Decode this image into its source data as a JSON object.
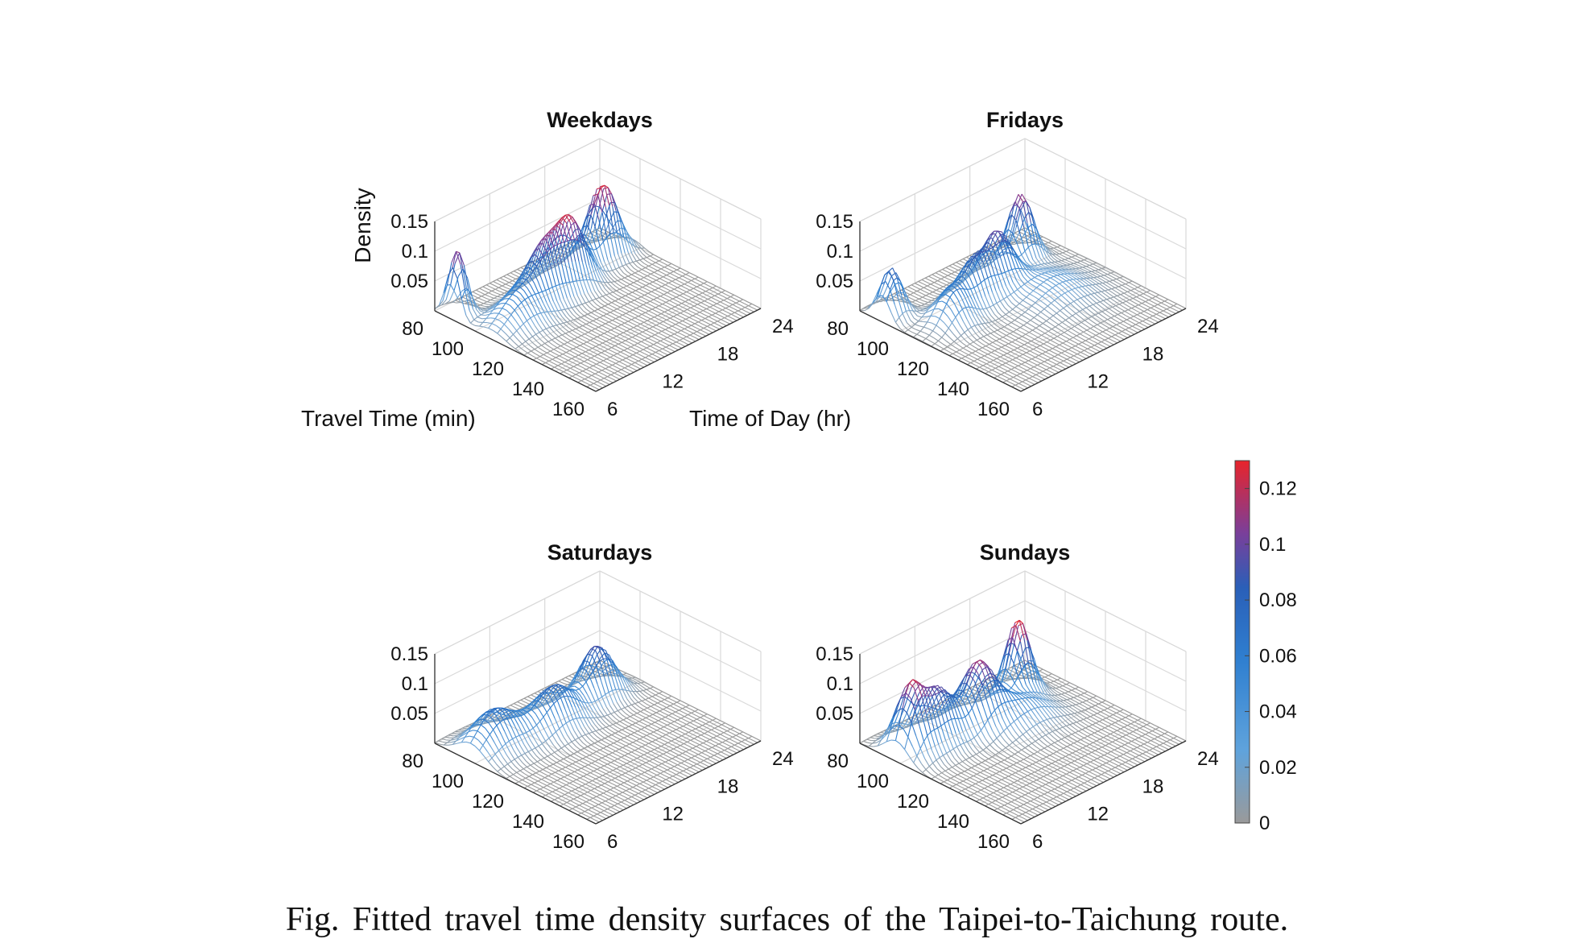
{
  "caption": "Fig. Fitted travel time density surfaces of the Taipei-to-Taichung route.",
  "axis_labels": {
    "x": "Travel Time (min)",
    "y": "Time of Day (hr)",
    "z": "Density"
  },
  "colorbar": {
    "ticks": [
      "0",
      "0.02",
      "0.04",
      "0.06",
      "0.08",
      "0.1",
      "0.12"
    ],
    "range": [
      0,
      0.13
    ],
    "colors": [
      "#9a9a9a",
      "#2f8ad8",
      "#2a5fb8",
      "#9b3f8e",
      "#e8242b"
    ]
  },
  "chart_data": [
    {
      "type": "surface",
      "title": "Weekdays",
      "xlabel": "Travel Time (min)",
      "ylabel": "Time of Day (hr)",
      "zlabel": "Density",
      "xlim": [
        80,
        160
      ],
      "ylim": [
        6,
        24
      ],
      "zlim": [
        0,
        0.15
      ],
      "xticks": [
        "80",
        "100",
        "120",
        "140",
        "160"
      ],
      "yticks": [
        "6",
        "12",
        "18",
        "24"
      ],
      "zticks": [
        "0.05",
        "0.1",
        "0.15"
      ],
      "peaks": [
        {
          "time_of_day": 6.5,
          "travel_time": 89,
          "density": 0.113,
          "time_spread": 0.7,
          "travel_spread": 3.5
        },
        {
          "time_of_day": 9,
          "travel_time": 108,
          "density": 0.05,
          "time_spread": 2.0,
          "travel_spread": 7
        },
        {
          "time_of_day": 13,
          "travel_time": 104,
          "density": 0.098,
          "time_spread": 1.8,
          "travel_spread": 5
        },
        {
          "time_of_day": 16,
          "travel_time": 102,
          "density": 0.096,
          "time_spread": 1.4,
          "travel_spread": 5
        },
        {
          "time_of_day": 20.5,
          "travel_time": 97,
          "density": 0.13,
          "time_spread": 1.5,
          "travel_spread": 4
        }
      ]
    },
    {
      "type": "surface",
      "title": "Fridays",
      "xlabel": "Travel Time (min)",
      "ylabel": "Time of Day (hr)",
      "zlabel": "Density",
      "xlim": [
        80,
        160
      ],
      "ylim": [
        6,
        24
      ],
      "zlim": [
        0,
        0.15
      ],
      "xticks": [
        "80",
        "100",
        "120",
        "140",
        "160"
      ],
      "yticks": [
        "6",
        "12",
        "18",
        "24"
      ],
      "zticks": [
        "0.05",
        "0.1",
        "0.15"
      ],
      "peaks": [
        {
          "time_of_day": 7,
          "travel_time": 91,
          "density": 0.083,
          "time_spread": 0.9,
          "travel_spread": 4
        },
        {
          "time_of_day": 9.5,
          "travel_time": 110,
          "density": 0.055,
          "time_spread": 1.3,
          "travel_spread": 6
        },
        {
          "time_of_day": 13,
          "travel_time": 106,
          "density": 0.08,
          "time_spread": 1.6,
          "travel_spread": 5
        },
        {
          "time_of_day": 16,
          "travel_time": 103,
          "density": 0.078,
          "time_spread": 1.2,
          "travel_spread": 5
        },
        {
          "time_of_day": 20,
          "travel_time": 96,
          "density": 0.113,
          "time_spread": 1.1,
          "travel_spread": 4
        },
        {
          "time_of_day": 18,
          "travel_time": 120,
          "density": 0.03,
          "time_spread": 2.5,
          "travel_spread": 12
        }
      ]
    },
    {
      "type": "surface",
      "title": "Saturdays",
      "xlabel": "Travel Time (min)",
      "ylabel": "Time of Day (hr)",
      "zlabel": "Density",
      "xlim": [
        80,
        160
      ],
      "ylim": [
        6,
        24
      ],
      "zlim": [
        0,
        0.15
      ],
      "xticks": [
        "80",
        "100",
        "120",
        "140",
        "160"
      ],
      "yticks": [
        "6",
        "12",
        "18",
        "24"
      ],
      "zticks": [
        "0.05",
        "0.1",
        "0.15"
      ],
      "peaks": [
        {
          "time_of_day": 8.5,
          "travel_time": 98,
          "density": 0.066,
          "time_spread": 2.0,
          "travel_spread": 7
        },
        {
          "time_of_day": 14,
          "travel_time": 103,
          "density": 0.072,
          "time_spread": 2.0,
          "travel_spread": 6
        },
        {
          "time_of_day": 19.5,
          "travel_time": 99,
          "density": 0.09,
          "time_spread": 1.6,
          "travel_spread": 5
        }
      ]
    },
    {
      "type": "surface",
      "title": "Sundays",
      "xlabel": "Travel Time (min)",
      "ylabel": "Time of Day (hr)",
      "zlabel": "Density",
      "xlim": [
        80,
        160
      ],
      "ylim": [
        6,
        24
      ],
      "zlim": [
        0,
        0.15
      ],
      "xticks": [
        "80",
        "100",
        "120",
        "140",
        "160"
      ],
      "yticks": [
        "6",
        "12",
        "18",
        "24"
      ],
      "zticks": [
        "0.05",
        "0.1",
        "0.15"
      ],
      "peaks": [
        {
          "time_of_day": 7.5,
          "travel_time": 98,
          "density": 0.102,
          "time_spread": 1.0,
          "travel_spread": 6
        },
        {
          "time_of_day": 10,
          "travel_time": 100,
          "density": 0.094,
          "time_spread": 1.4,
          "travel_spread": 6
        },
        {
          "time_of_day": 14,
          "travel_time": 102,
          "density": 0.103,
          "time_spread": 1.4,
          "travel_spread": 6
        },
        {
          "time_of_day": 19.5,
          "travel_time": 97,
          "density": 0.128,
          "time_spread": 1.1,
          "travel_spread": 4
        },
        {
          "time_of_day": 17,
          "travel_time": 110,
          "density": 0.04,
          "time_spread": 2.2,
          "travel_spread": 8
        }
      ]
    }
  ]
}
